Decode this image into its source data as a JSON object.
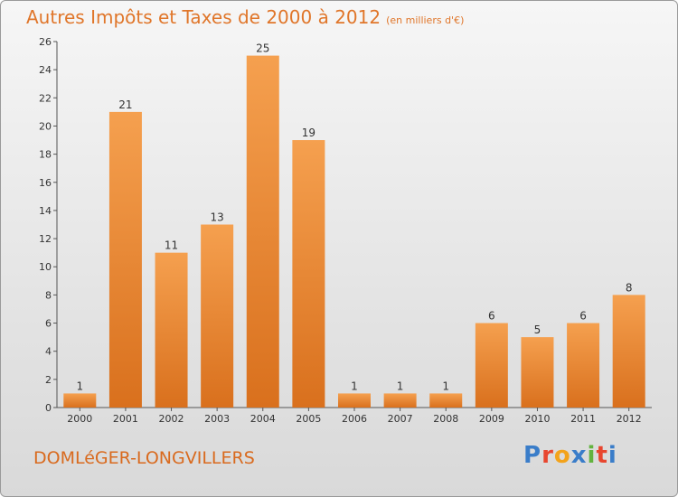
{
  "header": {
    "title": "Autres Impôts et Taxes de 2000 à 2012",
    "unit": "(en milliers d'€)"
  },
  "footer": {
    "commune": "DOMLéGER-LONGVILLERS",
    "logo_letters": [
      "P",
      "r",
      "o",
      "x",
      "i",
      "t",
      "i"
    ],
    "logo_colors": [
      "#3a7dc9",
      "#e8462f",
      "#f3a31b",
      "#3a7dc9",
      "#63b33f",
      "#e8462f",
      "#3a7dc9"
    ]
  },
  "colors": {
    "bar_light": "#f5a04f",
    "bar_dark": "#d9701d",
    "title": "#e0762a"
  },
  "chart_data": {
    "type": "bar",
    "categories": [
      "2000",
      "2001",
      "2002",
      "2003",
      "2004",
      "2005",
      "2006",
      "2007",
      "2008",
      "2009",
      "2010",
      "2011",
      "2012"
    ],
    "values": [
      1,
      21,
      11,
      13,
      25,
      19,
      1,
      1,
      1,
      6,
      5,
      6,
      8
    ],
    "ylim": [
      0,
      26
    ],
    "yticks": [
      0,
      2,
      4,
      6,
      8,
      10,
      12,
      14,
      16,
      18,
      20,
      22,
      24,
      26
    ],
    "grid": false
  }
}
